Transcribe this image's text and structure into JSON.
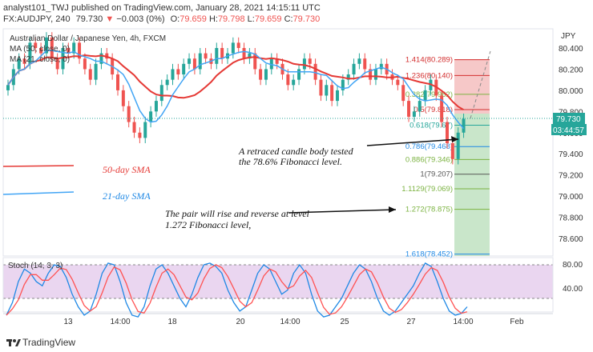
{
  "header": {
    "publish_line": "analyst101_TWJ published on TradingView.com, January 28, 2021 14:15:11 UTC",
    "symbol": "FX:AUDJPY, 240",
    "last": "79.730",
    "change": "−0.003 (0%)",
    "o_label": "O:",
    "o": "79.659",
    "h_label": "H:",
    "h": "79.798",
    "l_label": "L:",
    "l": "79.659",
    "c_label": "C:",
    "c": "79.730"
  },
  "legend": {
    "title": "Australian Dollar / Japanese Yen, 4h, FXCM",
    "ma1": "MA (50, close, 0)",
    "ma2": "MA (21, close, 0)"
  },
  "price_axis": {
    "currency": "JPY",
    "ticks": [
      "80.400",
      "80.200",
      "80.000",
      "79.800",
      "79.600",
      "79.400",
      "79.200",
      "79.000",
      "78.800",
      "78.600"
    ],
    "last_price": "79.730",
    "countdown": "03:44:57"
  },
  "fib_levels": [
    {
      "label": "1.414(80.289)",
      "value": 80.289,
      "color": "#d32f2f"
    },
    {
      "label": "1.236(80.140)",
      "value": 80.14,
      "color": "#d32f2f"
    },
    {
      "label": "0.382(79.962)",
      "value": 79.962,
      "color": "#7cb342"
    },
    {
      "label": "0.5(79.818)",
      "value": 79.818,
      "color": "#d32f2f"
    },
    {
      "label": "0.618(79.67)",
      "value": 79.67,
      "color": "#26a69a"
    },
    {
      "label": "0.786(79.468)",
      "value": 79.468,
      "color": "#1e88e5"
    },
    {
      "label": "0.886(79.346)",
      "value": 79.346,
      "color": "#7cb342"
    },
    {
      "label": "1(79.207)",
      "value": 79.207,
      "color": "#555555"
    },
    {
      "label": "1.1129(79.069)",
      "value": 79.069,
      "color": "#7cb342"
    },
    {
      "label": "1.272(78.875)",
      "value": 78.875,
      "color": "#7cb342"
    },
    {
      "label": "1.618(78.452)",
      "value": 78.452,
      "color": "#1e88e5"
    }
  ],
  "annotations": {
    "retrace_line1": "A retraced candle body tested",
    "retrace_line2": "the 78.6% Fibonacci level.",
    "rise_line1": "The pair will rise and reverse at level",
    "rise_line2": "1.272 Fibonacci level,",
    "sma50": "50-day SMA",
    "sma21": "21-day SMA"
  },
  "colors": {
    "up": "#26a69a",
    "down": "#ef5350",
    "sma50": "#e53935",
    "sma21": "#42a5f5",
    "stoch_k": "#1e88e5",
    "stoch_d": "#ff5252",
    "stoch_bg": "#e1bee7"
  },
  "stoch": {
    "label": "Stoch (14, 3, 3)",
    "ticks": [
      "80.00",
      "40.00"
    ]
  },
  "time_axis": [
    "13",
    "14:00",
    "18",
    "20",
    "14:00",
    "25",
    "27",
    "14:00",
    "Feb"
  ],
  "footer": {
    "brand": "TradingView"
  }
}
